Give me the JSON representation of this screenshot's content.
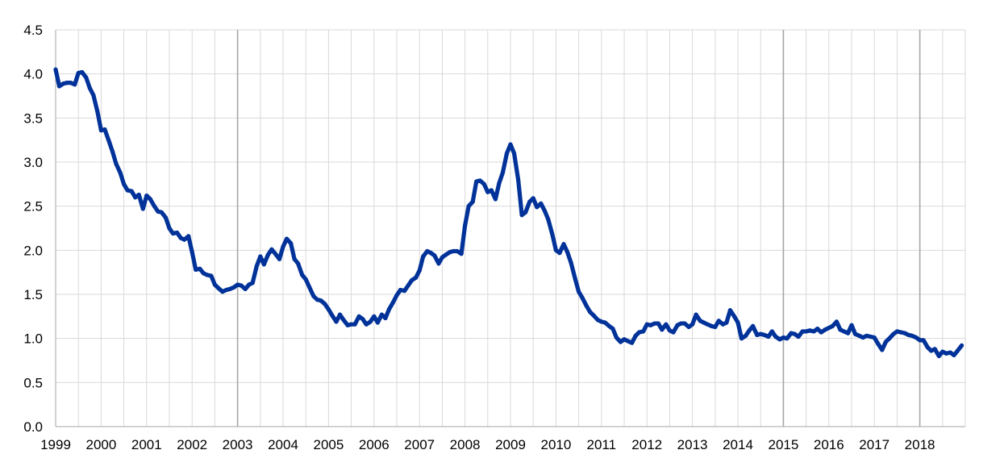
{
  "chart_data": {
    "type": "line",
    "title": "",
    "xlabel": "",
    "ylabel": "",
    "xlim": [
      1999,
      2018.92
    ],
    "ylim": [
      0,
      4.5
    ],
    "x_ticks": [
      "1999",
      "2000",
      "2001",
      "2002",
      "2003",
      "2004",
      "2005",
      "2006",
      "2007",
      "2008",
      "2009",
      "2010",
      "2011",
      "2012",
      "2013",
      "2014",
      "2015",
      "2016",
      "2017",
      "2018"
    ],
    "y_ticks": [
      "0.0",
      "0.5",
      "1.0",
      "1.5",
      "2.0",
      "2.5",
      "3.0",
      "3.5",
      "4.0",
      "4.5"
    ],
    "grid": true,
    "legend": "none",
    "major_vertical_lines": [
      2003,
      2015,
      2018
    ],
    "series": [
      {
        "color": "#003299",
        "points": [
          [
            1999.0,
            4.05
          ],
          [
            1999.08,
            3.86
          ],
          [
            1999.17,
            3.89
          ],
          [
            1999.25,
            3.9
          ],
          [
            1999.33,
            3.9
          ],
          [
            1999.42,
            3.88
          ],
          [
            1999.5,
            4.01
          ],
          [
            1999.58,
            4.02
          ],
          [
            1999.67,
            3.96
          ],
          [
            1999.75,
            3.84
          ],
          [
            1999.83,
            3.76
          ],
          [
            1999.92,
            3.57
          ],
          [
            2000.0,
            3.36
          ],
          [
            2000.08,
            3.37
          ],
          [
            2000.17,
            3.24
          ],
          [
            2000.25,
            3.12
          ],
          [
            2000.33,
            2.98
          ],
          [
            2000.42,
            2.88
          ],
          [
            2000.5,
            2.75
          ],
          [
            2000.58,
            2.68
          ],
          [
            2000.67,
            2.67
          ],
          [
            2000.75,
            2.6
          ],
          [
            2000.83,
            2.63
          ],
          [
            2000.92,
            2.47
          ],
          [
            2001.0,
            2.62
          ],
          [
            2001.08,
            2.58
          ],
          [
            2001.17,
            2.5
          ],
          [
            2001.25,
            2.44
          ],
          [
            2001.33,
            2.43
          ],
          [
            2001.42,
            2.37
          ],
          [
            2001.5,
            2.25
          ],
          [
            2001.58,
            2.19
          ],
          [
            2001.67,
            2.2
          ],
          [
            2001.75,
            2.14
          ],
          [
            2001.83,
            2.12
          ],
          [
            2001.92,
            2.16
          ],
          [
            2002.0,
            1.98
          ],
          [
            2002.08,
            1.78
          ],
          [
            2002.17,
            1.79
          ],
          [
            2002.25,
            1.74
          ],
          [
            2002.33,
            1.72
          ],
          [
            2002.42,
            1.71
          ],
          [
            2002.5,
            1.61
          ],
          [
            2002.58,
            1.57
          ],
          [
            2002.67,
            1.53
          ],
          [
            2002.75,
            1.55
          ],
          [
            2002.83,
            1.56
          ],
          [
            2002.92,
            1.58
          ],
          [
            2003.0,
            1.61
          ],
          [
            2003.08,
            1.6
          ],
          [
            2003.17,
            1.56
          ],
          [
            2003.25,
            1.61
          ],
          [
            2003.33,
            1.63
          ],
          [
            2003.42,
            1.82
          ],
          [
            2003.5,
            1.93
          ],
          [
            2003.58,
            1.84
          ],
          [
            2003.67,
            1.95
          ],
          [
            2003.75,
            2.01
          ],
          [
            2003.83,
            1.96
          ],
          [
            2003.92,
            1.9
          ],
          [
            2004.0,
            2.04
          ],
          [
            2004.08,
            2.13
          ],
          [
            2004.17,
            2.08
          ],
          [
            2004.25,
            1.9
          ],
          [
            2004.33,
            1.85
          ],
          [
            2004.42,
            1.72
          ],
          [
            2004.5,
            1.67
          ],
          [
            2004.58,
            1.58
          ],
          [
            2004.67,
            1.48
          ],
          [
            2004.75,
            1.44
          ],
          [
            2004.83,
            1.43
          ],
          [
            2004.92,
            1.39
          ],
          [
            2005.0,
            1.33
          ],
          [
            2005.08,
            1.26
          ],
          [
            2005.17,
            1.19
          ],
          [
            2005.25,
            1.27
          ],
          [
            2005.33,
            1.21
          ],
          [
            2005.42,
            1.15
          ],
          [
            2005.5,
            1.16
          ],
          [
            2005.58,
            1.16
          ],
          [
            2005.67,
            1.25
          ],
          [
            2005.75,
            1.22
          ],
          [
            2005.83,
            1.16
          ],
          [
            2005.92,
            1.19
          ],
          [
            2006.0,
            1.25
          ],
          [
            2006.08,
            1.18
          ],
          [
            2006.17,
            1.27
          ],
          [
            2006.25,
            1.23
          ],
          [
            2006.33,
            1.33
          ],
          [
            2006.42,
            1.41
          ],
          [
            2006.5,
            1.49
          ],
          [
            2006.58,
            1.55
          ],
          [
            2006.67,
            1.54
          ],
          [
            2006.75,
            1.6
          ],
          [
            2006.83,
            1.66
          ],
          [
            2006.92,
            1.69
          ],
          [
            2007.0,
            1.77
          ],
          [
            2007.08,
            1.93
          ],
          [
            2007.17,
            1.99
          ],
          [
            2007.25,
            1.97
          ],
          [
            2007.33,
            1.94
          ],
          [
            2007.42,
            1.85
          ],
          [
            2007.5,
            1.92
          ],
          [
            2007.58,
            1.95
          ],
          [
            2007.67,
            1.98
          ],
          [
            2007.75,
            1.99
          ],
          [
            2007.83,
            1.99
          ],
          [
            2007.92,
            1.96
          ],
          [
            2008.0,
            2.28
          ],
          [
            2008.08,
            2.5
          ],
          [
            2008.17,
            2.55
          ],
          [
            2008.25,
            2.78
          ],
          [
            2008.33,
            2.79
          ],
          [
            2008.42,
            2.75
          ],
          [
            2008.5,
            2.66
          ],
          [
            2008.58,
            2.68
          ],
          [
            2008.67,
            2.58
          ],
          [
            2008.75,
            2.76
          ],
          [
            2008.83,
            2.88
          ],
          [
            2008.92,
            3.1
          ],
          [
            2009.0,
            3.2
          ],
          [
            2009.08,
            3.1
          ],
          [
            2009.17,
            2.8
          ],
          [
            2009.25,
            2.4
          ],
          [
            2009.33,
            2.43
          ],
          [
            2009.42,
            2.55
          ],
          [
            2009.5,
            2.59
          ],
          [
            2009.58,
            2.49
          ],
          [
            2009.67,
            2.53
          ],
          [
            2009.75,
            2.45
          ],
          [
            2009.83,
            2.35
          ],
          [
            2009.92,
            2.18
          ],
          [
            2010.0,
            2.0
          ],
          [
            2010.08,
            1.97
          ],
          [
            2010.17,
            2.07
          ],
          [
            2010.25,
            1.98
          ],
          [
            2010.33,
            1.86
          ],
          [
            2010.42,
            1.68
          ],
          [
            2010.5,
            1.53
          ],
          [
            2010.58,
            1.46
          ],
          [
            2010.67,
            1.37
          ],
          [
            2010.75,
            1.3
          ],
          [
            2010.83,
            1.26
          ],
          [
            2010.92,
            1.21
          ],
          [
            2011.0,
            1.19
          ],
          [
            2011.08,
            1.18
          ],
          [
            2011.17,
            1.14
          ],
          [
            2011.25,
            1.11
          ],
          [
            2011.33,
            1.01
          ],
          [
            2011.42,
            0.96
          ],
          [
            2011.5,
            0.99
          ],
          [
            2011.58,
            0.97
          ],
          [
            2011.67,
            0.95
          ],
          [
            2011.75,
            1.03
          ],
          [
            2011.83,
            1.07
          ],
          [
            2011.92,
            1.08
          ],
          [
            2012.0,
            1.16
          ],
          [
            2012.08,
            1.15
          ],
          [
            2012.17,
            1.17
          ],
          [
            2012.25,
            1.17
          ],
          [
            2012.33,
            1.1
          ],
          [
            2012.42,
            1.16
          ],
          [
            2012.5,
            1.09
          ],
          [
            2012.58,
            1.07
          ],
          [
            2012.67,
            1.15
          ],
          [
            2012.75,
            1.17
          ],
          [
            2012.83,
            1.17
          ],
          [
            2012.92,
            1.13
          ],
          [
            2013.0,
            1.16
          ],
          [
            2013.08,
            1.27
          ],
          [
            2013.17,
            1.2
          ],
          [
            2013.25,
            1.18
          ],
          [
            2013.33,
            1.16
          ],
          [
            2013.42,
            1.14
          ],
          [
            2013.5,
            1.13
          ],
          [
            2013.58,
            1.2
          ],
          [
            2013.67,
            1.16
          ],
          [
            2013.75,
            1.18
          ],
          [
            2013.83,
            1.32
          ],
          [
            2013.92,
            1.25
          ],
          [
            2014.0,
            1.18
          ],
          [
            2014.08,
            1.0
          ],
          [
            2014.17,
            1.03
          ],
          [
            2014.25,
            1.09
          ],
          [
            2014.33,
            1.14
          ],
          [
            2014.42,
            1.04
          ],
          [
            2014.5,
            1.05
          ],
          [
            2014.58,
            1.04
          ],
          [
            2014.67,
            1.02
          ],
          [
            2014.75,
            1.08
          ],
          [
            2014.83,
            1.02
          ],
          [
            2014.92,
            0.99
          ],
          [
            2015.0,
            1.01
          ],
          [
            2015.08,
            1.0
          ],
          [
            2015.17,
            1.06
          ],
          [
            2015.25,
            1.05
          ],
          [
            2015.33,
            1.02
          ],
          [
            2015.42,
            1.08
          ],
          [
            2015.5,
            1.08
          ],
          [
            2015.58,
            1.09
          ],
          [
            2015.67,
            1.08
          ],
          [
            2015.75,
            1.11
          ],
          [
            2015.83,
            1.07
          ],
          [
            2015.92,
            1.1
          ],
          [
            2016.0,
            1.12
          ],
          [
            2016.08,
            1.14
          ],
          [
            2016.17,
            1.19
          ],
          [
            2016.25,
            1.1
          ],
          [
            2016.33,
            1.08
          ],
          [
            2016.42,
            1.06
          ],
          [
            2016.5,
            1.15
          ],
          [
            2016.58,
            1.05
          ],
          [
            2016.67,
            1.03
          ],
          [
            2016.75,
            1.01
          ],
          [
            2016.83,
            1.03
          ],
          [
            2016.92,
            1.02
          ],
          [
            2017.0,
            1.01
          ],
          [
            2017.08,
            0.94
          ],
          [
            2017.17,
            0.87
          ],
          [
            2017.25,
            0.96
          ],
          [
            2017.33,
            1.0
          ],
          [
            2017.42,
            1.05
          ],
          [
            2017.5,
            1.08
          ],
          [
            2017.58,
            1.07
          ],
          [
            2017.67,
            1.06
          ],
          [
            2017.75,
            1.04
          ],
          [
            2017.83,
            1.03
          ],
          [
            2017.92,
            1.01
          ],
          [
            2018.0,
            0.98
          ],
          [
            2018.08,
            0.98
          ],
          [
            2018.17,
            0.9
          ],
          [
            2018.25,
            0.86
          ],
          [
            2018.33,
            0.88
          ],
          [
            2018.42,
            0.8
          ],
          [
            2018.5,
            0.85
          ],
          [
            2018.58,
            0.83
          ],
          [
            2018.67,
            0.84
          ],
          [
            2018.75,
            0.81
          ],
          [
            2018.83,
            0.86
          ],
          [
            2018.92,
            0.92
          ]
        ]
      }
    ]
  }
}
